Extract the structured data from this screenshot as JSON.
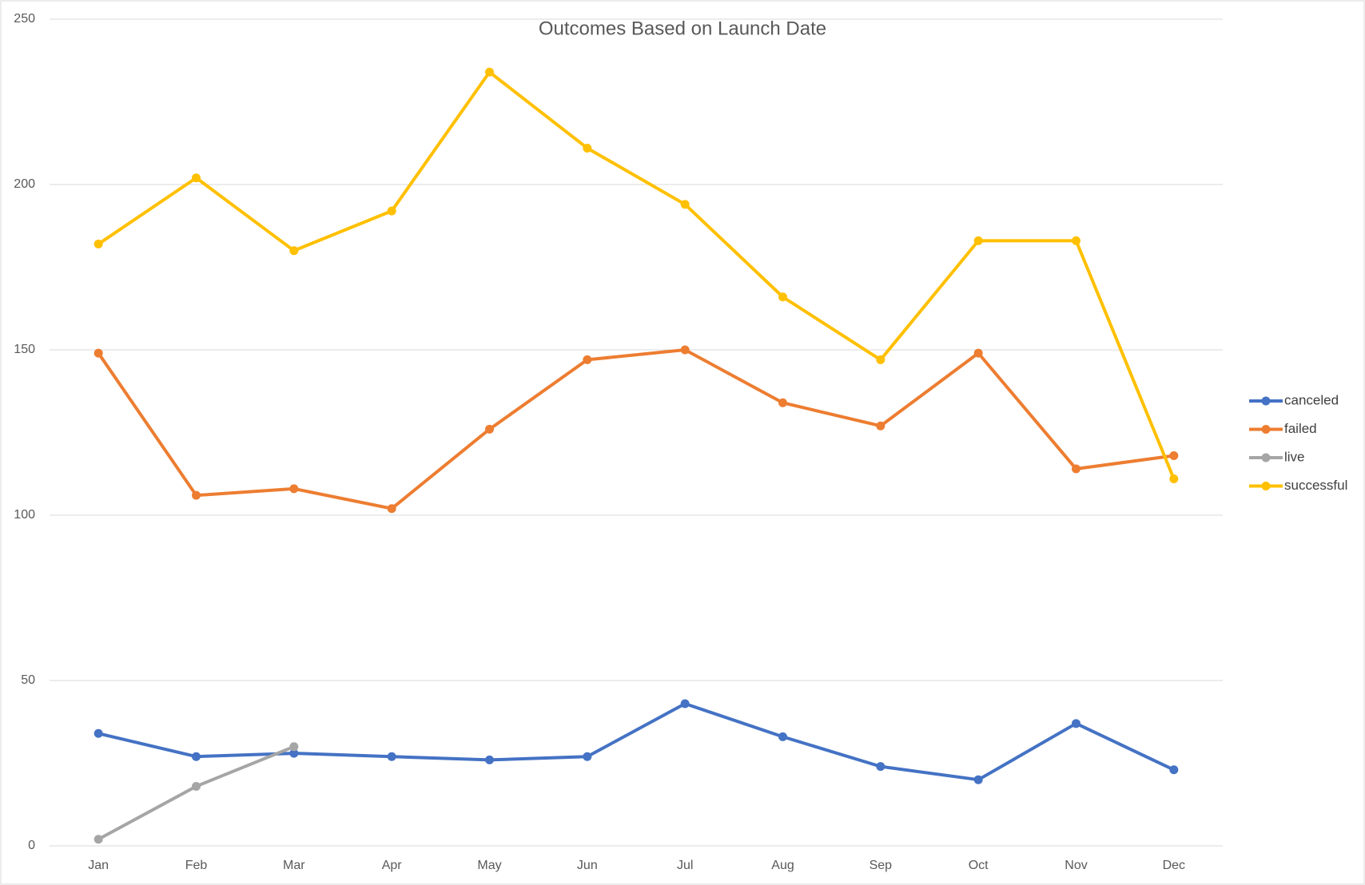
{
  "chart_data": {
    "type": "line",
    "title": "Outcomes Based on Launch Date",
    "categories": [
      "Jan",
      "Feb",
      "Mar",
      "Apr",
      "May",
      "Jun",
      "Jul",
      "Aug",
      "Sep",
      "Oct",
      "Nov",
      "Dec"
    ],
    "series": [
      {
        "name": "canceled",
        "color": "#4472c4",
        "values": [
          34,
          27,
          28,
          27,
          26,
          27,
          43,
          33,
          24,
          20,
          37,
          23
        ]
      },
      {
        "name": "failed",
        "color": "#ed7d31",
        "values": [
          149,
          106,
          108,
          102,
          126,
          147,
          150,
          134,
          127,
          149,
          114,
          118
        ]
      },
      {
        "name": "live",
        "color": "#a5a5a5",
        "values": [
          2,
          18,
          30,
          null,
          null,
          null,
          null,
          null,
          null,
          null,
          null,
          null
        ]
      },
      {
        "name": "successful",
        "color": "#ffc000",
        "values": [
          182,
          202,
          180,
          192,
          234,
          211,
          194,
          166,
          147,
          183,
          183,
          111
        ]
      }
    ],
    "ylim": [
      0,
      250
    ],
    "yticks": [
      0,
      50,
      100,
      150,
      200,
      250
    ],
    "grid": true,
    "legend": "right"
  }
}
